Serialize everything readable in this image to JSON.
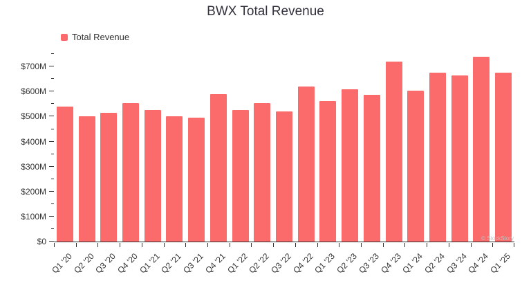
{
  "header": {
    "title": "BWX Total Revenue"
  },
  "legend": {
    "label": "Total Revenue"
  },
  "watermark": "© StockStory",
  "chart_data": {
    "type": "bar",
    "title": "BWX Total Revenue",
    "series_name": "Total Revenue",
    "unit": "USD millions",
    "categories": [
      "Q1 '20",
      "Q2 '20",
      "Q3 '20",
      "Q4 '20",
      "Q1 '21",
      "Q2 '21",
      "Q3 '21",
      "Q4 '21",
      "Q1 '22",
      "Q2 '22",
      "Q3 '22",
      "Q4 '22",
      "Q1 '23",
      "Q2 '23",
      "Q3 '23",
      "Q4 '23",
      "Q1 '24",
      "Q2 '24",
      "Q3 '24",
      "Q4 '24",
      "Q1 '25"
    ],
    "values": [
      540,
      500,
      515,
      553,
      527,
      502,
      495,
      590,
      527,
      553,
      520,
      620,
      563,
      610,
      586,
      720,
      604,
      676,
      665,
      740,
      677
    ],
    "ylim": [
      0,
      770
    ],
    "ytick_values": [
      0,
      100,
      200,
      300,
      400,
      500,
      600,
      700
    ],
    "ytick_labels": [
      "$0",
      "$100M",
      "$200M",
      "$300M",
      "$400M",
      "$500M",
      "$600M",
      "$700M"
    ],
    "minor_tick_step": 50,
    "bar_color": "#FB6B6B",
    "grid": false,
    "legend_position": "top-left"
  }
}
